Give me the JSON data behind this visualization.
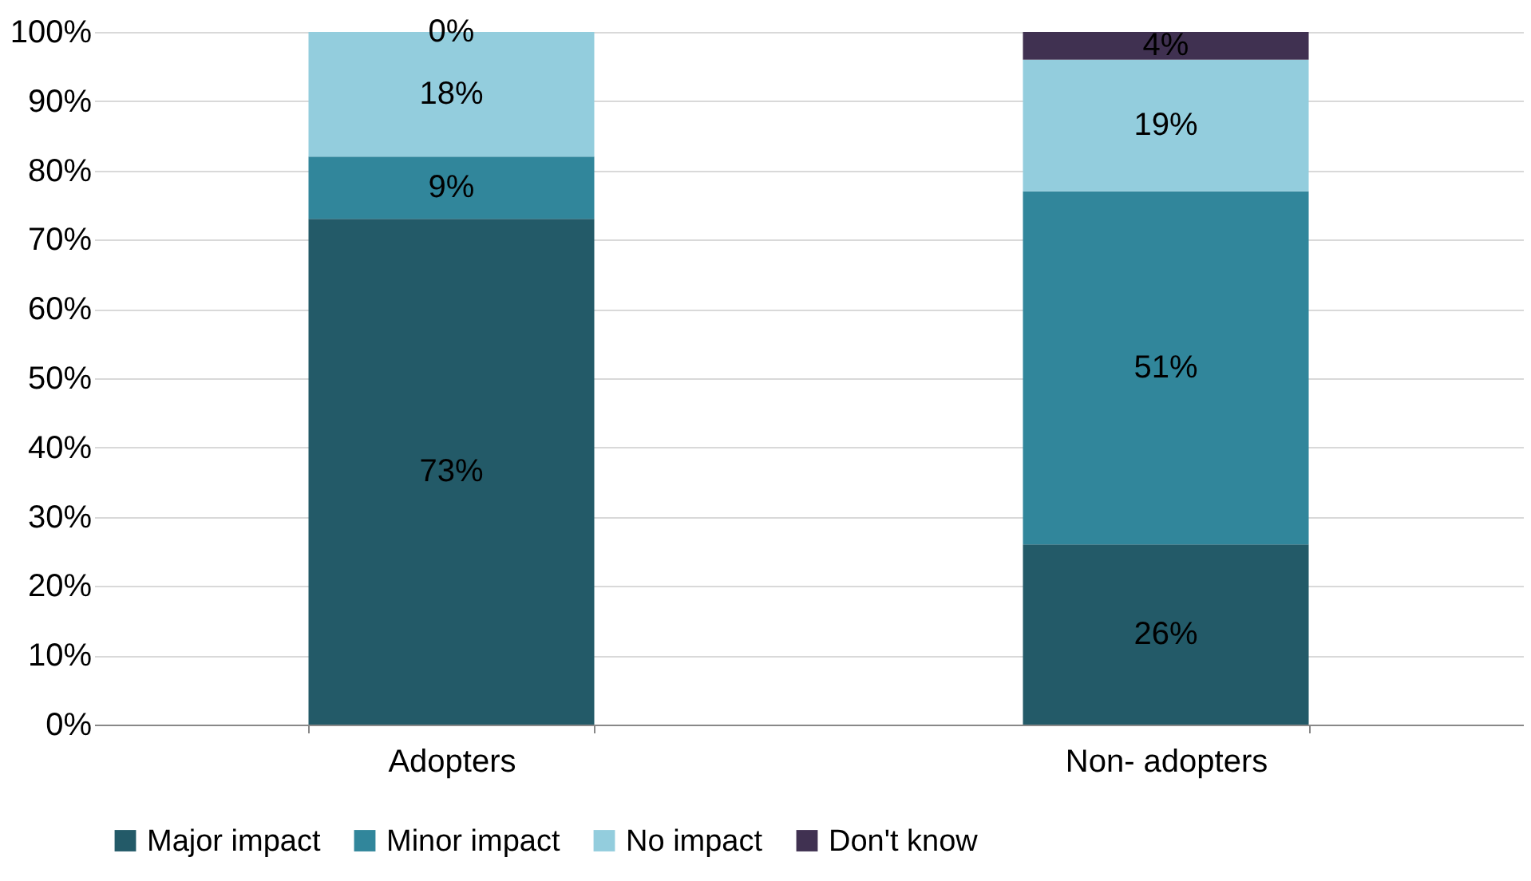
{
  "chart_data": {
    "type": "bar",
    "stacked": true,
    "categories": [
      "Adopters",
      "Non- adopters"
    ],
    "series": [
      {
        "name": "Major impact",
        "color": "#235a68",
        "values": [
          73,
          26
        ]
      },
      {
        "name": "Minor impact",
        "color": "#31869b",
        "values": [
          9,
          51
        ]
      },
      {
        "name": "No impact",
        "color": "#93cddd",
        "values": [
          18,
          19
        ]
      },
      {
        "name": "Don't know",
        "color": "#403151",
        "values": [
          0,
          4
        ]
      }
    ],
    "ylim": [
      0,
      100
    ],
    "yticks": [
      {
        "value": 0,
        "label": "0%"
      },
      {
        "value": 10,
        "label": "10%"
      },
      {
        "value": 20,
        "label": "20%"
      },
      {
        "value": 30,
        "label": "30%"
      },
      {
        "value": 40,
        "label": "40%"
      },
      {
        "value": 50,
        "label": "50%"
      },
      {
        "value": 60,
        "label": "60%"
      },
      {
        "value": 70,
        "label": "70%"
      },
      {
        "value": 80,
        "label": "80%"
      },
      {
        "value": 90,
        "label": "90%"
      },
      {
        "value": 100,
        "label": "100%"
      }
    ],
    "value_labels": [
      [
        "73%",
        "26%"
      ],
      [
        "9%",
        "51%"
      ],
      [
        "18%",
        "19%"
      ],
      [
        "0%",
        "4%"
      ]
    ],
    "grid": "y",
    "legend": "bottom"
  }
}
